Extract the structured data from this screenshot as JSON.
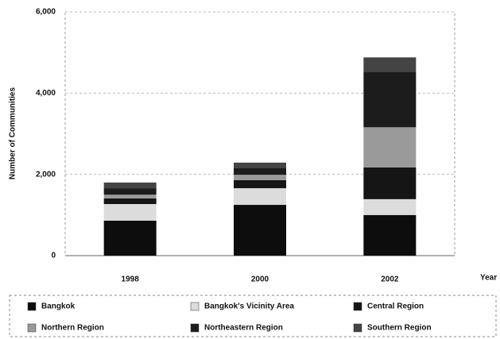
{
  "chart_data": {
    "type": "stacked_bar",
    "y_label": "Number of Communities",
    "x_label": "Year",
    "categories": [
      "1998",
      "2000",
      "2002"
    ],
    "series": [
      {
        "name": "Bangkok",
        "color": "#0d0d0d",
        "values": [
          860,
          1250,
          1000
        ]
      },
      {
        "name": "Bangkok's Vicinity Area",
        "color": "#dcdcdc",
        "values": [
          410,
          410,
          390
        ]
      },
      {
        "name": "Central Region",
        "color": "#151515",
        "values": [
          140,
          200,
          780
        ]
      },
      {
        "name": "Northern Region",
        "color": "#9a9a9a",
        "values": [
          90,
          130,
          990
        ]
      },
      {
        "name": "Northeastern Region",
        "color": "#1c1c1c",
        "values": [
          160,
          160,
          1370
        ]
      },
      {
        "name": "Southern Region",
        "color": "#444444",
        "values": [
          140,
          140,
          350
        ]
      }
    ],
    "ylim": [
      0,
      6000
    ],
    "yticks": [
      0,
      {
        "value": 2000,
        "label": "2,000"
      },
      {
        "value": 4000,
        "label": "4,000"
      },
      {
        "value": 6000,
        "label": "6,000"
      }
    ],
    "grid": true,
    "legend": "bottom"
  }
}
